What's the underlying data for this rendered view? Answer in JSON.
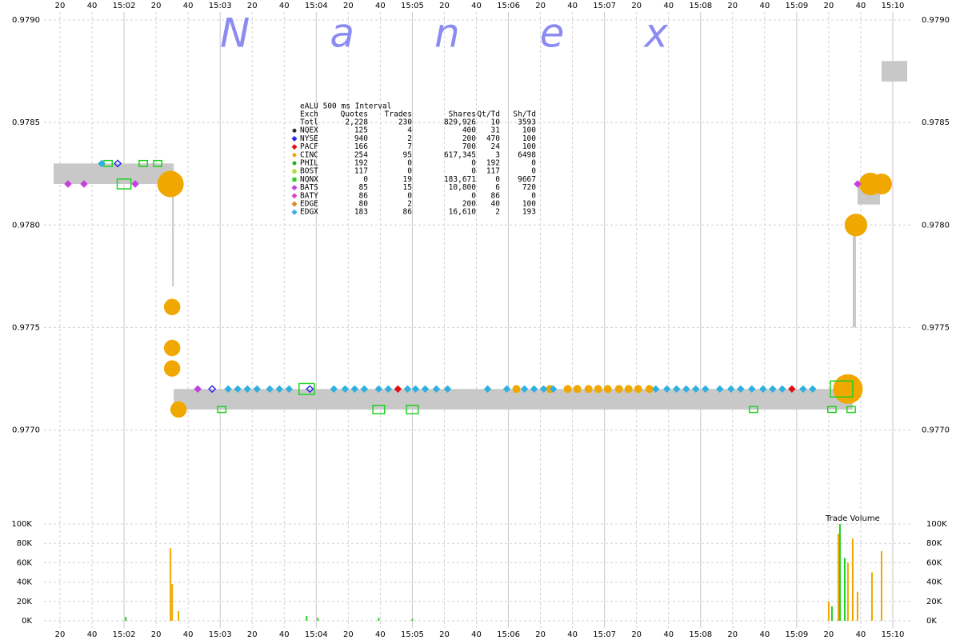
{
  "watermark": "N a n e x",
  "chart_data": [
    {
      "type": "scatter",
      "xlim": [
        "15:01:10",
        "15:10:12"
      ],
      "xticks": [
        {
          "value": "15:01:20",
          "label": "20"
        },
        {
          "value": "15:01:40",
          "label": "40"
        },
        {
          "value": "15:02:00",
          "label": "15:02"
        },
        {
          "value": "15:02:20",
          "label": "20"
        },
        {
          "value": "15:02:40",
          "label": "40"
        },
        {
          "value": "15:03:00",
          "label": "15:03"
        },
        {
          "value": "15:03:20",
          "label": "20"
        },
        {
          "value": "15:03:40",
          "label": "40"
        },
        {
          "value": "15:04:00",
          "label": "15:04"
        },
        {
          "value": "15:04:20",
          "label": "20"
        },
        {
          "value": "15:04:40",
          "label": "40"
        },
        {
          "value": "15:05:00",
          "label": "15:05"
        },
        {
          "value": "15:05:20",
          "label": "20"
        },
        {
          "value": "15:05:40",
          "label": "40"
        },
        {
          "value": "15:06:00",
          "label": "15:06"
        },
        {
          "value": "15:06:20",
          "label": "20"
        },
        {
          "value": "15:06:40",
          "label": "40"
        },
        {
          "value": "15:07:00",
          "label": "15:07"
        },
        {
          "value": "15:07:20",
          "label": "20"
        },
        {
          "value": "15:07:40",
          "label": "40"
        },
        {
          "value": "15:08:00",
          "label": "15:08"
        },
        {
          "value": "15:08:20",
          "label": "20"
        },
        {
          "value": "15:08:40",
          "label": "40"
        },
        {
          "value": "15:09:00",
          "label": "15:09"
        },
        {
          "value": "15:09:20",
          "label": "20"
        },
        {
          "value": "15:09:40",
          "label": "40"
        },
        {
          "value": "15:10:00",
          "label": "15:10"
        }
      ],
      "ylim": [
        0.9766,
        0.979
      ],
      "yticks": [
        {
          "value": 0.977,
          "label": "0.9770"
        },
        0.9775,
        {
          "value": 0.978,
          "label": "0.9780"
        },
        0.9785,
        {
          "value": 0.979,
          "label": "0.9790"
        }
      ],
      "grid": true,
      "nbbo": {
        "color": "#c8c8c8",
        "start": [
          "15:01:16",
          "15:02:30",
          "15:02:31",
          "15:09:35",
          "15:09:38",
          "15:09:53"
        ],
        "end": [
          "15:02:30",
          "15:02:31",
          "15:09:35",
          "15:09:37",
          "15:09:52",
          "15:10:09"
        ],
        "bid": [
          0.9782,
          0.9777,
          0.9771,
          0.9775,
          0.9781,
          0.9787
        ],
        "ask": [
          0.9783,
          0.9783,
          0.9772,
          0.978,
          0.9782,
          0.9788
        ]
      },
      "table_title": "eALU 500 ms Interval",
      "columns": [
        "Exch",
        "Quotes",
        "Trades",
        "Shares",
        "Qt/Td",
        "Sh/Td"
      ],
      "total": {
        "name": "Totl",
        "stats": [
          "2,228",
          "230",
          "829,926",
          "10",
          "3593"
        ]
      },
      "series": [
        {
          "name": "NQEX",
          "color": "#303030",
          "marker": "circle",
          "stats": [
            "125",
            "4",
            "400",
            "31",
            "100"
          ]
        },
        {
          "name": "NYSE",
          "color": "#2828e8",
          "marker": "diamond",
          "filled": false,
          "stats": [
            "940",
            "2",
            "200",
            "470",
            "100"
          ],
          "x": [
            "15:01:56",
            "15:02:55",
            "15:03:56"
          ],
          "values": [
            0.9783,
            0.9772,
            0.9772
          ]
        },
        {
          "name": "PACF",
          "color": "#e01010",
          "marker": "diamond",
          "stats": [
            "166",
            "7",
            "700",
            "24",
            "100"
          ],
          "x": [
            "15:04:51",
            "15:08:57"
          ],
          "values": [
            0.9772,
            0.9772
          ]
        },
        {
          "name": "CINC",
          "color": "#f0a800",
          "marker": "circle",
          "stats": [
            "254",
            "95",
            "617,345",
            "3",
            "6498"
          ],
          "x": [
            "15:02:29",
            "15:02:30",
            "15:02:30",
            "15:02:30",
            "15:02:34",
            "15:06:05",
            "15:06:26",
            "15:06:37",
            "15:06:43",
            "15:06:50",
            "15:06:56",
            "15:07:02",
            "15:07:09",
            "15:07:15",
            "15:07:21",
            "15:07:28",
            "15:09:32",
            "15:09:37",
            "15:09:46",
            "15:09:53"
          ],
          "values": [
            0.9782,
            0.9776,
            0.9774,
            0.9773,
            0.9771,
            0.9772,
            0.9772,
            0.9772,
            0.9772,
            0.9772,
            0.9772,
            0.9772,
            0.9772,
            0.9772,
            0.9772,
            0.9772,
            0.9772,
            0.978,
            0.9782,
            0.9782
          ],
          "sizes": [
            75000,
            20000,
            20000,
            20000,
            20000,
            1000,
            1000,
            1000,
            1000,
            1000,
            1000,
            1000,
            1000,
            1000,
            1000,
            1000,
            100000,
            50000,
            50000,
            40000
          ]
        },
        {
          "name": "PHIL",
          "color": "#20b020",
          "marker": "circle",
          "stats": [
            "192",
            "0",
            "0",
            "192",
            "0"
          ]
        },
        {
          "name": "BOST",
          "color": "#a8e030",
          "marker": "square",
          "stats": [
            "117",
            "0",
            "0",
            "117",
            "0"
          ]
        },
        {
          "name": "NQNX",
          "color": "#20d020",
          "marker": "square",
          "filled": false,
          "stats": [
            "0",
            "19",
            "183,671",
            "0",
            "9667"
          ],
          "x": [
            "15:01:50",
            "15:02:00",
            "15:02:12",
            "15:02:21",
            "15:03:01",
            "15:03:54",
            "15:04:39",
            "15:05:00",
            "15:08:33",
            "15:09:22",
            "15:09:28",
            "15:09:34"
          ],
          "values": [
            0.9783,
            0.9782,
            0.9783,
            0.9783,
            0.9771,
            0.9772,
            0.9771,
            0.9771,
            0.9771,
            0.9771,
            0.9772,
            0.9771
          ],
          "sizes": [
            1000,
            20000,
            1000,
            1000,
            1000,
            30000,
            10000,
            10000,
            1000,
            1000,
            100000,
            1000
          ]
        },
        {
          "name": "BATS",
          "color": "#c040e0",
          "marker": "diamond",
          "stats": [
            "85",
            "15",
            "10,800",
            "6",
            "720"
          ],
          "x": [
            "15:01:25",
            "15:01:35",
            "15:02:07",
            "15:02:46",
            "15:09:38"
          ],
          "values": [
            0.9782,
            0.9782,
            0.9782,
            0.9772,
            0.9782
          ]
        },
        {
          "name": "BATY",
          "color": "#e040c0",
          "marker": "diamond",
          "stats": [
            "86",
            "0",
            "0",
            "86",
            "0"
          ]
        },
        {
          "name": "EDGE",
          "color": "#e08820",
          "marker": "diamond",
          "stats": [
            "80",
            "2",
            "200",
            "40",
            "100"
          ]
        },
        {
          "name": "EDGX",
          "color": "#30b0e0",
          "marker": "diamond",
          "stats": [
            "183",
            "86",
            "16,610",
            "2",
            "193"
          ],
          "x": [
            "15:01:46",
            "15:03:05",
            "15:03:11",
            "15:03:17",
            "15:03:23",
            "15:03:31",
            "15:03:37",
            "15:03:43",
            "15:04:11",
            "15:04:18",
            "15:04:24",
            "15:04:30",
            "15:04:39",
            "15:04:45",
            "15:04:57",
            "15:05:02",
            "15:05:08",
            "15:05:15",
            "15:05:22",
            "15:05:47",
            "15:05:59",
            "15:06:10",
            "15:06:16",
            "15:06:22",
            "15:06:28",
            "15:07:32",
            "15:07:39",
            "15:07:45",
            "15:07:51",
            "15:07:57",
            "15:08:03",
            "15:08:12",
            "15:08:19",
            "15:08:25",
            "15:08:32",
            "15:08:39",
            "15:08:45",
            "15:08:51",
            "15:09:04",
            "15:09:10"
          ],
          "values": [
            0.9783,
            0.9772,
            0.9772,
            0.9772,
            0.9772,
            0.9772,
            0.9772,
            0.9772,
            0.9772,
            0.9772,
            0.9772,
            0.9772,
            0.9772,
            0.9772,
            0.9772,
            0.9772,
            0.9772,
            0.9772,
            0.9772,
            0.9772,
            0.9772,
            0.9772,
            0.9772,
            0.9772,
            0.9772,
            0.9772,
            0.9772,
            0.9772,
            0.9772,
            0.9772,
            0.9772,
            0.9772,
            0.9772,
            0.9772,
            0.9772,
            0.9772,
            0.9772,
            0.9772,
            0.9772,
            0.9772
          ]
        }
      ]
    },
    {
      "type": "bar",
      "title": "Trade Volume",
      "ylim": [
        0,
        100000
      ],
      "yticks": [
        {
          "value": 0,
          "label": "0K"
        },
        {
          "value": 20000,
          "label": "20K"
        },
        {
          "value": 40000,
          "label": "40K"
        },
        {
          "value": 60000,
          "label": "60K"
        },
        {
          "value": 80000,
          "label": "80K"
        },
        {
          "value": 100000,
          "label": "100K"
        }
      ],
      "grid": true,
      "series": [
        {
          "color": "#f0a800",
          "x": [
            "15:02:29",
            "15:02:30",
            "15:02:34",
            "15:09:20",
            "15:09:26",
            "15:09:32",
            "15:09:35",
            "15:09:38",
            "15:09:47",
            "15:09:53"
          ],
          "values": [
            75000,
            38000,
            10000,
            20000,
            90000,
            60000,
            85000,
            30000,
            50000,
            72000
          ]
        },
        {
          "color": "#20d020",
          "x": [
            "15:02:01",
            "15:03:54",
            "15:04:01",
            "15:04:39",
            "15:05:00",
            "15:09:22",
            "15:09:27",
            "15:09:30"
          ],
          "values": [
            4000,
            5000,
            3000,
            3000,
            2000,
            15000,
            100000,
            65000
          ]
        }
      ]
    }
  ]
}
